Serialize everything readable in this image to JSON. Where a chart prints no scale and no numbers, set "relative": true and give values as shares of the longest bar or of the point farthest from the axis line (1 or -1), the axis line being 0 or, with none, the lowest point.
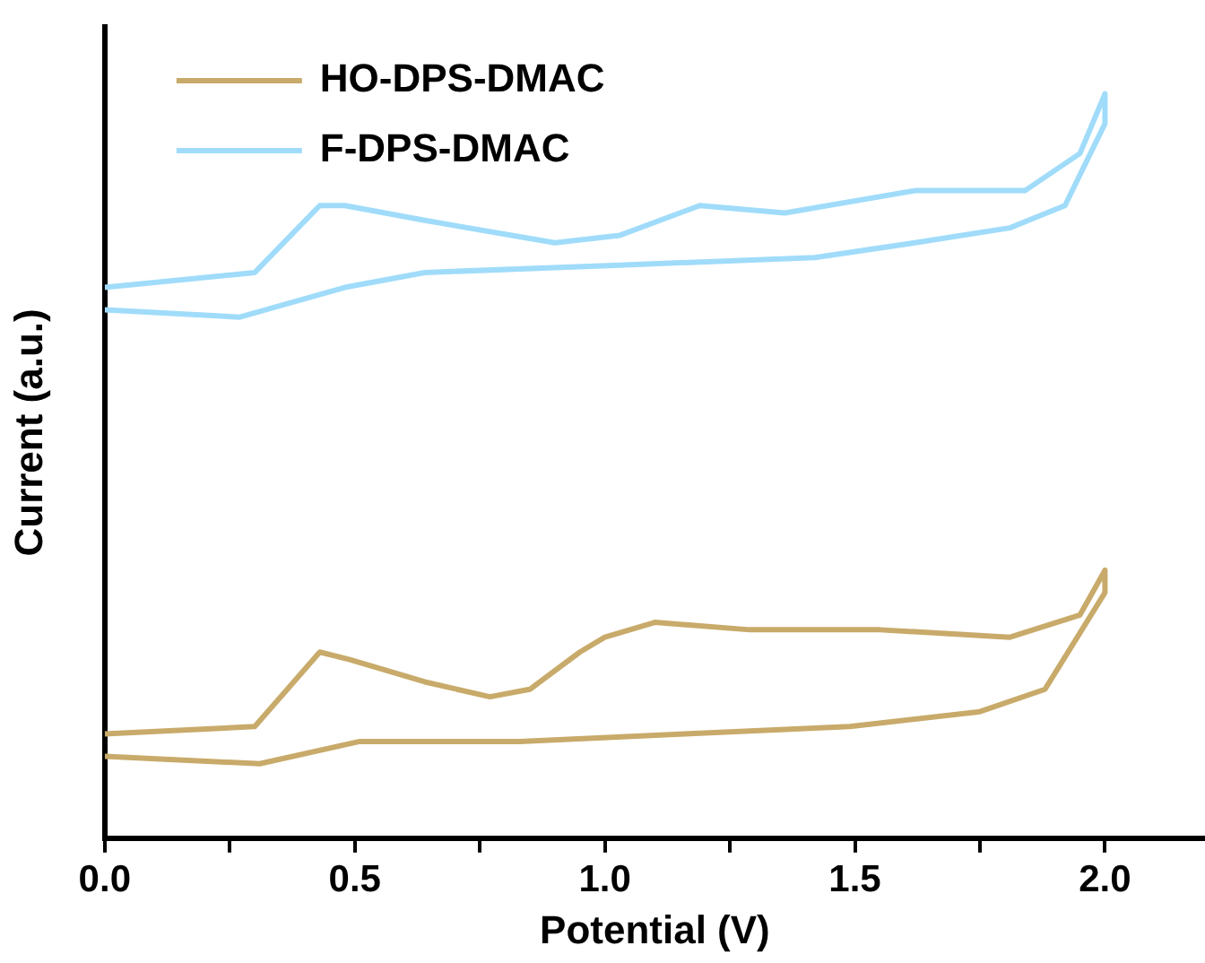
{
  "chart_data": {
    "type": "line",
    "relative": true,
    "xlabel": "Potential (V)",
    "ylabel": "Current (a.u.)",
    "xlim": [
      0,
      2.2
    ],
    "xticks": [
      {
        "value": 0,
        "label": "0.0"
      },
      {
        "value": 0.25,
        "label": null
      },
      {
        "value": 0.5,
        "label": "0.5"
      },
      {
        "value": 0.75,
        "label": null
      },
      {
        "value": 1,
        "label": "1.0"
      },
      {
        "value": 1.25,
        "label": null
      },
      {
        "value": 1.5,
        "label": "1.5"
      },
      {
        "value": 1.75,
        "label": null
      },
      {
        "value": 2,
        "label": "2.0"
      }
    ],
    "grid": false,
    "legend": "top left",
    "marker": "none",
    "line_style": "solid",
    "series": [
      {
        "name": "HO-DPS-DMAC",
        "color": "#c8aa6a",
        "x": [
          0,
          0.3,
          0.43,
          0.49,
          0.64,
          0.77,
          0.85,
          0.95,
          1.0,
          1.1,
          1.29,
          1.55,
          1.81,
          1.95,
          2.0,
          2.0,
          1.88,
          1.75,
          1.49,
          1.16,
          0.83,
          0.66,
          0.51,
          0.31,
          0
        ],
        "values": [
          0.14,
          0.15,
          0.25,
          0.24,
          0.21,
          0.19,
          0.2,
          0.25,
          0.27,
          0.29,
          0.28,
          0.28,
          0.27,
          0.3,
          0.36,
          0.33,
          0.2,
          0.17,
          0.15,
          0.14,
          0.13,
          0.13,
          0.13,
          0.1,
          0.11
        ]
      },
      {
        "name": "F-DPS-DMAC",
        "color": "#a0dcfa",
        "x": [
          0,
          0.3,
          0.43,
          0.48,
          0.64,
          0.9,
          1.03,
          1.19,
          1.36,
          1.62,
          1.84,
          1.95,
          2.0,
          2.0,
          1.92,
          1.81,
          1.62,
          1.42,
          1.03,
          0.64,
          0.48,
          0.27,
          0
        ],
        "values": [
          0.74,
          0.76,
          0.85,
          0.85,
          0.83,
          0.8,
          0.81,
          0.85,
          0.84,
          0.87,
          0.87,
          0.92,
          1.0,
          0.96,
          0.85,
          0.82,
          0.8,
          0.78,
          0.77,
          0.76,
          0.74,
          0.7,
          0.71
        ]
      }
    ]
  }
}
